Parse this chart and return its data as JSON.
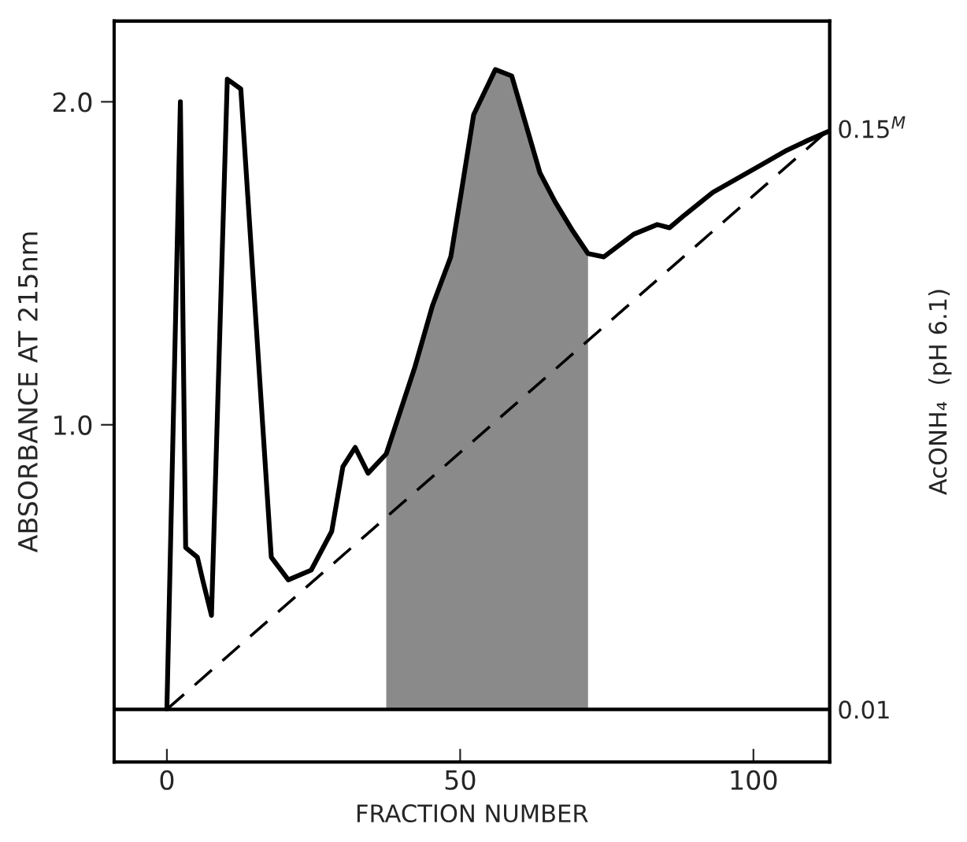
{
  "chart_data": {
    "type": "line",
    "xlabel": "FRACTION NUMBER",
    "ylabel": "ABSORBANCE AT 215nm",
    "y2label": "AcONH₄  (pH 6.1)",
    "xlim": [
      -9,
      113
    ],
    "xticks": [
      0,
      50,
      100
    ],
    "ylim": [
      -0.044,
      2.25
    ],
    "yticks": [
      {
        "value": 1,
        "label": "1.0"
      },
      {
        "value": 2,
        "label": "2.0"
      }
    ],
    "y2lim": [
      -0.0027,
      0.176
    ],
    "y2ticks": [
      {
        "value": 0.01,
        "label": "0.01"
      },
      {
        "value": 0.15,
        "label": "0.15$^{M}$"
      }
    ],
    "grid": false,
    "legend": false,
    "series": [
      {
        "type": "area",
        "color": "#8a8a8a",
        "x": [
          37.4,
          42.3,
          45.3,
          48.4,
          50.1,
          52.3,
          56.0,
          58.8,
          63.6,
          66.2,
          69.2,
          71.8
        ],
        "values": [
          0.91,
          1.18,
          1.37,
          1.52,
          1.71,
          1.96,
          2.1,
          2.08,
          1.78,
          1.69,
          1.6,
          1.53
        ]
      },
      {
        "color": "#000000",
        "line_style": "solid",
        "x": [
          0,
          2.3,
          3.2,
          5.2,
          6.1,
          7.6,
          10.3,
          12.6,
          17.8,
          20.7,
          24.6,
          28.1,
          30.0,
          32.1,
          34.3,
          37.4,
          42.3,
          45.3,
          48.4,
          50.1,
          52.3,
          56.0,
          58.8,
          63.6,
          66.2,
          69.2,
          71.8,
          74.5,
          79.6,
          83.6,
          85.7,
          88.3,
          93.1,
          97.0,
          100.9,
          105.7,
          109.2,
          113
        ],
        "values": [
          0.12,
          2.0,
          0.62,
          0.59,
          0.52,
          0.41,
          2.07,
          2.04,
          0.59,
          0.52,
          0.55,
          0.67,
          0.87,
          0.93,
          0.85,
          0.91,
          1.18,
          1.37,
          1.52,
          1.71,
          1.96,
          2.1,
          2.08,
          1.78,
          1.69,
          1.6,
          1.53,
          1.52,
          1.59,
          1.62,
          1.61,
          1.65,
          1.72,
          1.76,
          1.8,
          1.85,
          1.88,
          1.91
        ]
      },
      {
        "type": "line",
        "color": "#000000",
        "line_style": "dashed",
        "axis": "y2",
        "x": [
          0,
          113
        ],
        "values": [
          0.01,
          0.15
        ]
      }
    ],
    "ref_lines": [
      {
        "axis": "y2",
        "value": 0.01,
        "color": "#000000",
        "line_style": "solid"
      }
    ]
  }
}
